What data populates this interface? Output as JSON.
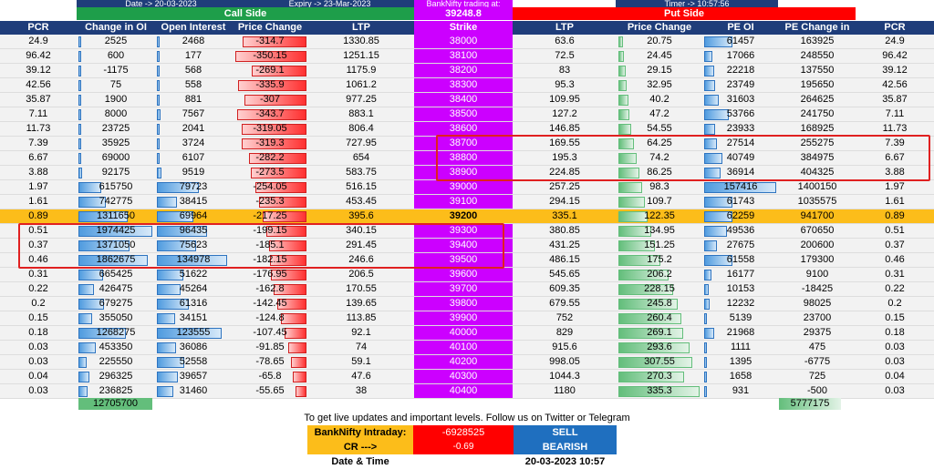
{
  "top": {
    "date_label": "Date -> 20-03-2023",
    "expiry_label": "Expiry -> 23-Mar-2023",
    "trading_label": "BankNifty trading at:",
    "timer_label": "Timer -> 10:57:56",
    "call_side": "Call Side",
    "put_side": "Put Side",
    "spot": "39248.8"
  },
  "headers": [
    "PCR",
    "Change in OI",
    "Open Interest",
    "Price Change",
    "LTP",
    "Strike",
    "LTP",
    "Price Change",
    "PE OI",
    "PE Change in OI",
    "PCR"
  ],
  "rows": [
    {
      "pcr": "24.9",
      "ce_chg_oi": "2525",
      "ce_oi": "2468",
      "ce_pchg": "-314.7",
      "ce_ltp": "1330.85",
      "strike": "38000",
      "pe_ltp": "63.6",
      "pe_pchg": "20.75",
      "pe_oi": "61457",
      "pe_chg_oi": "163925",
      "pcr2": "24.9"
    },
    {
      "pcr": "96.42",
      "ce_chg_oi": "600",
      "ce_oi": "177",
      "ce_pchg": "-350.15",
      "ce_ltp": "1251.15",
      "strike": "38100",
      "pe_ltp": "72.5",
      "pe_pchg": "24.45",
      "pe_oi": "17066",
      "pe_chg_oi": "248550",
      "pcr2": "96.42"
    },
    {
      "pcr": "39.12",
      "ce_chg_oi": "-1175",
      "ce_oi": "568",
      "ce_pchg": "-269.1",
      "ce_ltp": "1175.9",
      "strike": "38200",
      "pe_ltp": "83",
      "pe_pchg": "29.15",
      "pe_oi": "22218",
      "pe_chg_oi": "137550",
      "pcr2": "39.12"
    },
    {
      "pcr": "42.56",
      "ce_chg_oi": "75",
      "ce_oi": "558",
      "ce_pchg": "-335.9",
      "ce_ltp": "1061.2",
      "strike": "38300",
      "pe_ltp": "95.3",
      "pe_pchg": "32.95",
      "pe_oi": "23749",
      "pe_chg_oi": "195650",
      "pcr2": "42.56"
    },
    {
      "pcr": "35.87",
      "ce_chg_oi": "1900",
      "ce_oi": "881",
      "ce_pchg": "-307",
      "ce_ltp": "977.25",
      "strike": "38400",
      "pe_ltp": "109.95",
      "pe_pchg": "40.2",
      "pe_oi": "31603",
      "pe_chg_oi": "264625",
      "pcr2": "35.87"
    },
    {
      "pcr": "7.11",
      "ce_chg_oi": "8000",
      "ce_oi": "7567",
      "ce_pchg": "-343.7",
      "ce_ltp": "883.1",
      "strike": "38500",
      "pe_ltp": "127.2",
      "pe_pchg": "47.2",
      "pe_oi": "53766",
      "pe_chg_oi": "241750",
      "pcr2": "7.11"
    },
    {
      "pcr": "11.73",
      "ce_chg_oi": "23725",
      "ce_oi": "2041",
      "ce_pchg": "-319.05",
      "ce_ltp": "806.4",
      "strike": "38600",
      "pe_ltp": "146.85",
      "pe_pchg": "54.55",
      "pe_oi": "23933",
      "pe_chg_oi": "168925",
      "pcr2": "11.73"
    },
    {
      "pcr": "7.39",
      "ce_chg_oi": "35925",
      "ce_oi": "3724",
      "ce_pchg": "-319.3",
      "ce_ltp": "727.95",
      "strike": "38700",
      "pe_ltp": "169.55",
      "pe_pchg": "64.25",
      "pe_oi": "27514",
      "pe_chg_oi": "255275",
      "pcr2": "7.39"
    },
    {
      "pcr": "6.67",
      "ce_chg_oi": "69000",
      "ce_oi": "6107",
      "ce_pchg": "-282.2",
      "ce_ltp": "654",
      "strike": "38800",
      "pe_ltp": "195.3",
      "pe_pchg": "74.2",
      "pe_oi": "40749",
      "pe_chg_oi": "384975",
      "pcr2": "6.67"
    },
    {
      "pcr": "3.88",
      "ce_chg_oi": "92175",
      "ce_oi": "9519",
      "ce_pchg": "-273.5",
      "ce_ltp": "583.75",
      "strike": "38900",
      "pe_ltp": "224.85",
      "pe_pchg": "86.25",
      "pe_oi": "36914",
      "pe_chg_oi": "404325",
      "pcr2": "3.88"
    },
    {
      "pcr": "1.97",
      "ce_chg_oi": "615750",
      "ce_oi": "79723",
      "ce_pchg": "-254.05",
      "ce_ltp": "516.15",
      "strike": "39000",
      "pe_ltp": "257.25",
      "pe_pchg": "98.3",
      "pe_oi": "157416",
      "pe_chg_oi": "1400150",
      "pcr2": "1.97"
    },
    {
      "pcr": "1.61",
      "ce_chg_oi": "742775",
      "ce_oi": "38415",
      "ce_pchg": "-235.3",
      "ce_ltp": "453.45",
      "strike": "39100",
      "pe_ltp": "294.15",
      "pe_pchg": "109.7",
      "pe_oi": "61743",
      "pe_chg_oi": "1035575",
      "pcr2": "1.61"
    },
    {
      "pcr": "0.89",
      "ce_chg_oi": "1311650",
      "ce_oi": "69964",
      "ce_pchg": "-217.25",
      "ce_ltp": "395.6",
      "strike": "39200",
      "pe_ltp": "335.1",
      "pe_pchg": "122.35",
      "pe_oi": "62259",
      "pe_chg_oi": "941700",
      "pcr2": "0.89",
      "hl": true
    },
    {
      "pcr": "0.51",
      "ce_chg_oi": "1974425",
      "ce_oi": "96435",
      "ce_pchg": "-199.15",
      "ce_ltp": "340.15",
      "strike": "39300",
      "pe_ltp": "380.85",
      "pe_pchg": "134.95",
      "pe_oi": "49536",
      "pe_chg_oi": "670650",
      "pcr2": "0.51"
    },
    {
      "pcr": "0.37",
      "ce_chg_oi": "1371050",
      "ce_oi": "75623",
      "ce_pchg": "-185.1",
      "ce_ltp": "291.45",
      "strike": "39400",
      "pe_ltp": "431.25",
      "pe_pchg": "151.25",
      "pe_oi": "27675",
      "pe_chg_oi": "200600",
      "pcr2": "0.37"
    },
    {
      "pcr": "0.46",
      "ce_chg_oi": "1862675",
      "ce_oi": "134978",
      "ce_pchg": "-182.15",
      "ce_ltp": "246.6",
      "strike": "39500",
      "pe_ltp": "486.15",
      "pe_pchg": "175.2",
      "pe_oi": "61558",
      "pe_chg_oi": "179300",
      "pcr2": "0.46"
    },
    {
      "pcr": "0.31",
      "ce_chg_oi": "665425",
      "ce_oi": "51622",
      "ce_pchg": "-176.95",
      "ce_ltp": "206.5",
      "strike": "39600",
      "pe_ltp": "545.65",
      "pe_pchg": "206.2",
      "pe_oi": "16177",
      "pe_chg_oi": "9100",
      "pcr2": "0.31"
    },
    {
      "pcr": "0.22",
      "ce_chg_oi": "426475",
      "ce_oi": "45264",
      "ce_pchg": "-162.8",
      "ce_ltp": "170.55",
      "strike": "39700",
      "pe_ltp": "609.35",
      "pe_pchg": "228.15",
      "pe_oi": "10153",
      "pe_chg_oi": "-18425",
      "pcr2": "0.22"
    },
    {
      "pcr": "0.2",
      "ce_chg_oi": "679275",
      "ce_oi": "61316",
      "ce_pchg": "-142.45",
      "ce_ltp": "139.65",
      "strike": "39800",
      "pe_ltp": "679.55",
      "pe_pchg": "245.8",
      "pe_oi": "12232",
      "pe_chg_oi": "98025",
      "pcr2": "0.2"
    },
    {
      "pcr": "0.15",
      "ce_chg_oi": "355050",
      "ce_oi": "34151",
      "ce_pchg": "-124.8",
      "ce_ltp": "113.85",
      "strike": "39900",
      "pe_ltp": "752",
      "pe_pchg": "260.4",
      "pe_oi": "5139",
      "pe_chg_oi": "23700",
      "pcr2": "0.15"
    },
    {
      "pcr": "0.18",
      "ce_chg_oi": "1268275",
      "ce_oi": "123555",
      "ce_pchg": "-107.45",
      "ce_ltp": "92.1",
      "strike": "40000",
      "pe_ltp": "829",
      "pe_pchg": "269.1",
      "pe_oi": "21968",
      "pe_chg_oi": "29375",
      "pcr2": "0.18"
    },
    {
      "pcr": "0.03",
      "ce_chg_oi": "453350",
      "ce_oi": "36086",
      "ce_pchg": "-91.85",
      "ce_ltp": "74",
      "strike": "40100",
      "pe_ltp": "915.6",
      "pe_pchg": "293.6",
      "pe_oi": "1111",
      "pe_chg_oi": "475",
      "pcr2": "0.03"
    },
    {
      "pcr": "0.03",
      "ce_chg_oi": "225550",
      "ce_oi": "52558",
      "ce_pchg": "-78.65",
      "ce_ltp": "59.1",
      "strike": "40200",
      "pe_ltp": "998.05",
      "pe_pchg": "307.55",
      "pe_oi": "1395",
      "pe_chg_oi": "-6775",
      "pcr2": "0.03"
    },
    {
      "pcr": "0.04",
      "ce_chg_oi": "296325",
      "ce_oi": "39657",
      "ce_pchg": "-65.8",
      "ce_ltp": "47.6",
      "strike": "40300",
      "pe_ltp": "1044.3",
      "pe_pchg": "270.3",
      "pe_oi": "1658",
      "pe_chg_oi": "725",
      "pcr2": "0.04"
    },
    {
      "pcr": "0.03",
      "ce_chg_oi": "236825",
      "ce_oi": "31460",
      "ce_pchg": "-55.65",
      "ce_ltp": "38",
      "strike": "40400",
      "pe_ltp": "1180",
      "pe_pchg": "335.3",
      "pe_oi": "931",
      "pe_chg_oi": "-500",
      "pcr2": "0.03"
    }
  ],
  "totals": {
    "ce_chg_oi": "12705700",
    "pe_chg_oi": "5777175"
  },
  "footer": {
    "note": "To get live updates and important levels. Follow us on Twitter or Telegram",
    "intraday_label": "BankNifty Intraday:",
    "intraday_value": "-6928525",
    "signal": "SELL",
    "cr_label": "CR --->",
    "cr_value": "-0.69",
    "bias": "BEARISH",
    "datetime_label": "Date & Time",
    "datetime_value": "20-03-2023 10:57"
  },
  "colors": {
    "call": "#1e9e4a",
    "put": "#ff0000",
    "strike": "#cc00ff",
    "highlight": "#fcbd1a",
    "header": "#1f3d7a",
    "signal": "#1f6fbf"
  }
}
